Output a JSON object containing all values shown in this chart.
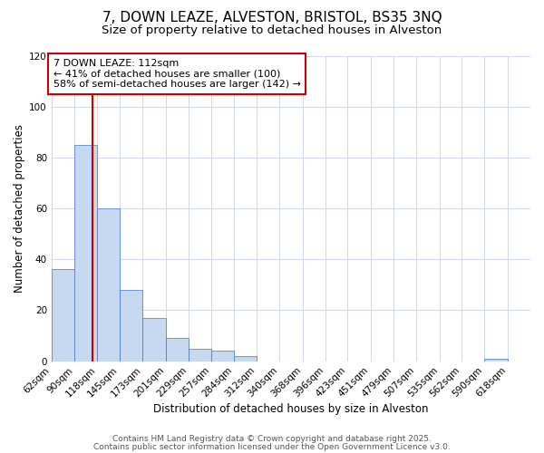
{
  "title": "7, DOWN LEAZE, ALVESTON, BRISTOL, BS35 3NQ",
  "subtitle": "Size of property relative to detached houses in Alveston",
  "xlabel": "Distribution of detached houses by size in Alveston",
  "ylabel": "Number of detached properties",
  "bin_labels": [
    "62sqm",
    "90sqm",
    "118sqm",
    "145sqm",
    "173sqm",
    "201sqm",
    "229sqm",
    "257sqm",
    "284sqm",
    "312sqm",
    "340sqm",
    "368sqm",
    "396sqm",
    "423sqm",
    "451sqm",
    "479sqm",
    "507sqm",
    "535sqm",
    "562sqm",
    "590sqm",
    "618sqm"
  ],
  "bin_edges": [
    62,
    90,
    118,
    145,
    173,
    201,
    229,
    257,
    284,
    312,
    340,
    368,
    396,
    423,
    451,
    479,
    507,
    535,
    562,
    590,
    618
  ],
  "bar_heights": [
    36,
    85,
    60,
    28,
    17,
    9,
    5,
    4,
    2,
    0,
    0,
    0,
    0,
    0,
    0,
    0,
    0,
    0,
    0,
    1,
    0
  ],
  "bar_color": "#c6d9f1",
  "bar_edge_color": "#4472c4",
  "property_size": 112,
  "red_line_color": "#cc0000",
  "annotation_line1": "7 DOWN LEAZE: 112sqm",
  "annotation_line2": "← 41% of detached houses are smaller (100)",
  "annotation_line3": "58% of semi-detached houses are larger (142) →",
  "annotation_box_color": "#ffffff",
  "annotation_box_edge_color": "#cc0000",
  "ylim": [
    0,
    120
  ],
  "yticks": [
    0,
    20,
    40,
    60,
    80,
    100,
    120
  ],
  "footer_line1": "Contains HM Land Registry data © Crown copyright and database right 2025.",
  "footer_line2": "Contains public sector information licensed under the Open Government Licence v3.0.",
  "background_color": "#ffffff",
  "grid_color": "#d0d8e8",
  "title_fontsize": 11,
  "subtitle_fontsize": 9.5,
  "axis_label_fontsize": 8.5,
  "tick_fontsize": 7.5,
  "annotation_fontsize": 8,
  "footer_fontsize": 6.5
}
